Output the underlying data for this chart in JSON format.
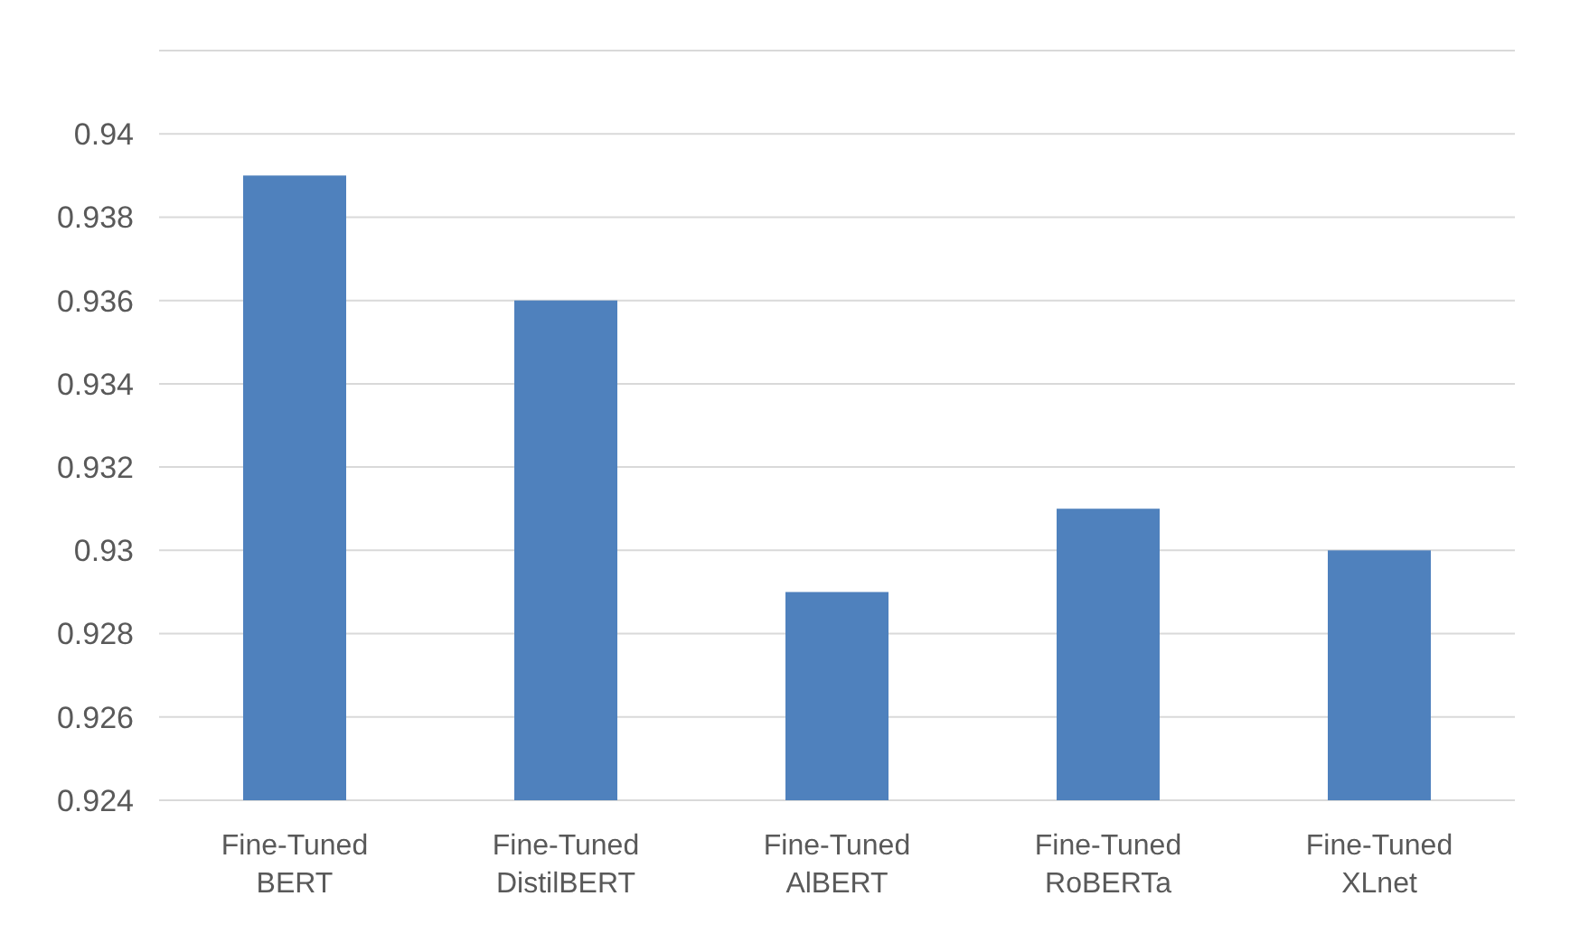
{
  "chart_data": {
    "type": "bar",
    "categories": [
      "Fine-Tuned BERT",
      "Fine-Tuned DistilBERT",
      "Fine-Tuned AlBERT",
      "Fine-Tuned RoBERTa",
      "Fine-Tuned XLnet"
    ],
    "values": [
      0.939,
      0.936,
      0.929,
      0.931,
      0.93
    ],
    "color": "#4f81bd",
    "ylim": [
      0.924,
      0.942
    ],
    "yticks": [
      0.924,
      0.926,
      0.928,
      0.93,
      0.932,
      0.934,
      0.936,
      0.938,
      0.94,
      {
        "value": 0.942,
        "label": null
      }
    ],
    "grid": "y"
  }
}
